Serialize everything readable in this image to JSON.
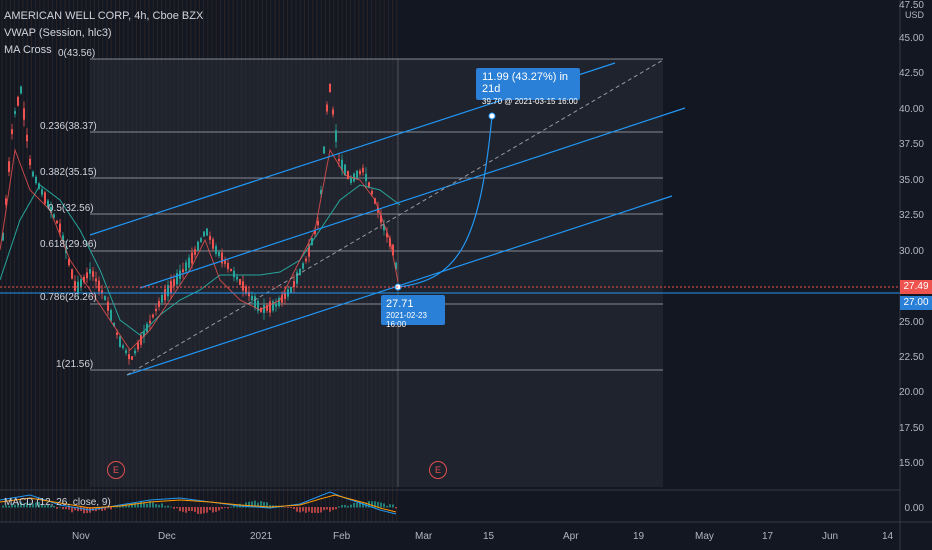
{
  "header": {
    "symbol": "AMERICAN WELL CORP, 4h, Cboe BZX",
    "indicators": [
      "VWAP (Session, hlc3)",
      "MA Cross"
    ],
    "macd": "MACD (12, 26, close, 9)"
  },
  "price_axis": {
    "currency": "USD",
    "ticks": [
      "45.00",
      "42.50",
      "40.00",
      "37.50",
      "35.00",
      "32.50",
      "30.00",
      "25.00",
      "22.50",
      "20.00",
      "17.50",
      "15.00",
      "0.00"
    ],
    "partial_top": "47.50",
    "current_price": "27.49",
    "crosshair_price": "27.00"
  },
  "time_axis": {
    "ticks": [
      "Nov",
      "Dec",
      "2021",
      "Feb",
      "Mar",
      "15",
      "Apr",
      "19",
      "May",
      "17",
      "Jun",
      "14"
    ]
  },
  "fib_levels": [
    {
      "label": "0(43.56)"
    },
    {
      "label": "0.236(38.37)"
    },
    {
      "label": "0.382(35.15)"
    },
    {
      "label": "0.5(32.56)"
    },
    {
      "label": "0.618(29.96)"
    },
    {
      "label": "0.786(26.26)"
    },
    {
      "label": "1(21.56)"
    }
  ],
  "projection": {
    "headline": "11.99 (43.27%) in 21d",
    "subline": "39.70 @ 2021-03-15  16:00"
  },
  "anchor": {
    "price": "27.71",
    "datetime": "2021-02-23  16:00"
  },
  "earnings_marker": "E",
  "colors": {
    "background": "#131722",
    "accent": "#2a7fd6",
    "up": "#26a69a",
    "down": "#ef5350",
    "current_price_tag": "#ef5350",
    "channel_line": "#2196f3"
  }
}
